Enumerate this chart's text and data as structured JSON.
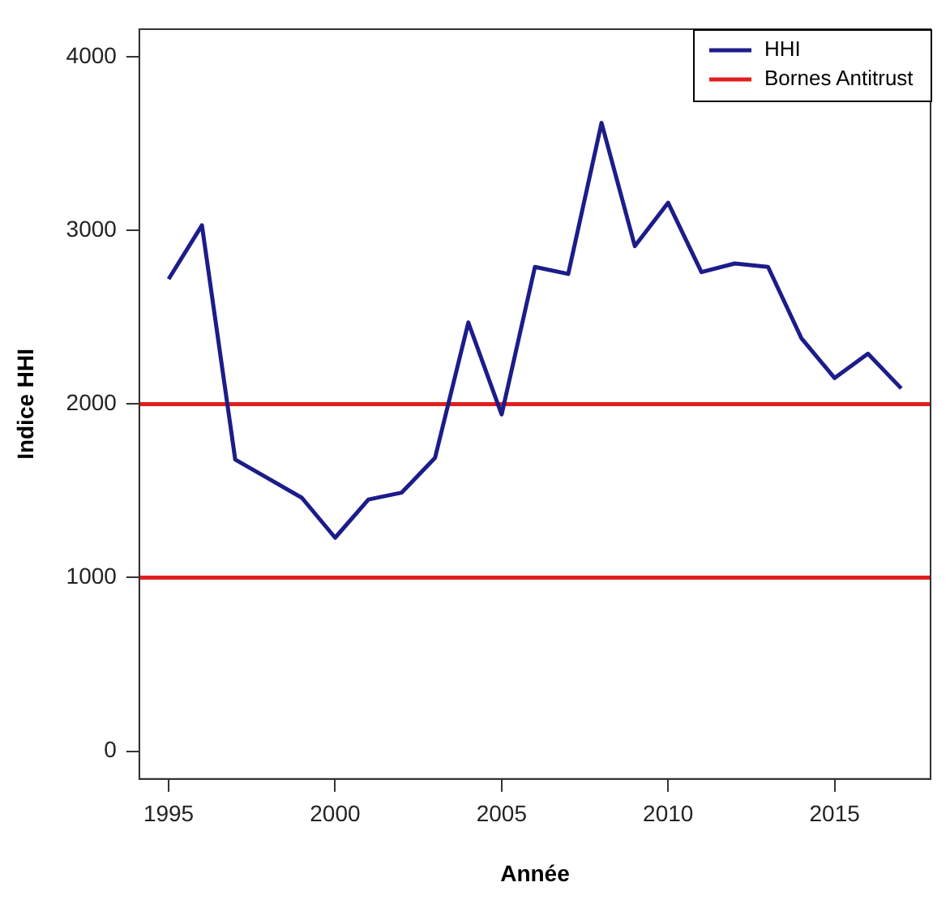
{
  "chart_data": {
    "type": "line",
    "xlabel": "Année",
    "ylabel": "Indice HHI",
    "x": [
      1995,
      1996,
      1997,
      1998,
      1999,
      2000,
      2001,
      2002,
      2003,
      2004,
      2005,
      2006,
      2007,
      2008,
      2009,
      2010,
      2011,
      2012,
      2013,
      2014,
      2015,
      2016,
      2017
    ],
    "series": [
      {
        "name": "HHI",
        "color": "#1c1c8a",
        "values": [
          2720,
          3030,
          1680,
          1570,
          1460,
          1230,
          1450,
          1490,
          1690,
          2470,
          1940,
          2790,
          2750,
          3620,
          2910,
          3160,
          2760,
          2810,
          2790,
          2380,
          2150,
          2290,
          2090
        ]
      }
    ],
    "ref_lines": [
      {
        "axis": "y",
        "value": 2000,
        "label": "Bornes Antitrust",
        "color": "#e02020"
      },
      {
        "axis": "y",
        "value": 1000,
        "color": "#e02020"
      }
    ],
    "xlim": [
      1994.12,
      2017.88
    ],
    "xticks": [
      1995,
      2000,
      2005,
      2010,
      2015
    ],
    "ylim": [
      -160,
      4160
    ],
    "yticks": [
      0,
      1000,
      2000,
      3000,
      4000
    ],
    "grid": false,
    "legend": "top right",
    "line_style": "solid",
    "marker": "none"
  }
}
